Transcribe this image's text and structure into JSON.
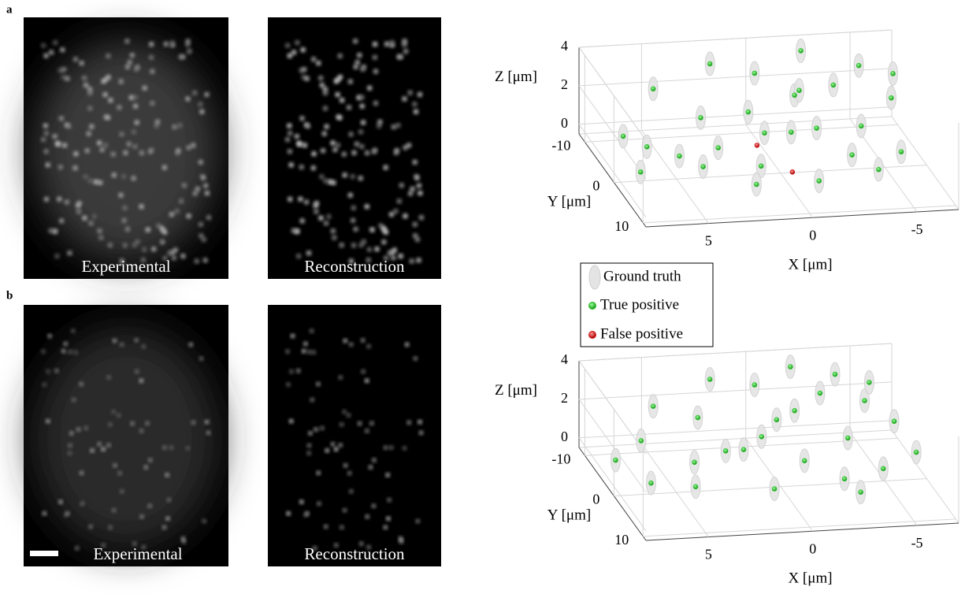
{
  "figure": {
    "panels": [
      {
        "label": "a",
        "images": [
          {
            "caption": "Experimental"
          },
          {
            "caption": "Reconstruction"
          }
        ]
      },
      {
        "label": "b",
        "images": [
          {
            "caption": "Experimental"
          },
          {
            "caption": "Reconstruction"
          }
        ]
      }
    ]
  },
  "chart_data": [
    {
      "type": "scatter3d",
      "xlabel": "X [μm]",
      "ylabel": "Y [μm]",
      "zlabel": "Z [μm]",
      "xlim": [
        8,
        -7
      ],
      "xticks": [
        5,
        0,
        -5
      ],
      "ylim": [
        -12,
        11
      ],
      "yticks": [
        -10,
        0,
        10
      ],
      "zlim": [
        -0.5,
        4
      ],
      "zticks": [
        0,
        2,
        4
      ],
      "series": [
        {
          "name": "Ground truth",
          "color": "#e4e4e4",
          "x": [
            7,
            6,
            5,
            4,
            3,
            2,
            1.5,
            1,
            0,
            -0.5,
            -1,
            -1.5,
            -2,
            -2.5,
            -3,
            -3.5,
            -4,
            -5,
            -5.5,
            -6,
            -6.5,
            7,
            3,
            0.5,
            -4,
            2,
            -2,
            5
          ],
          "y": [
            -4,
            -3,
            -8,
            2,
            -6,
            -10,
            4,
            -4,
            -9,
            0,
            6,
            -6,
            -2,
            -11,
            3,
            -7,
            -1,
            -9,
            2,
            -5,
            -8,
            2,
            0,
            -2,
            5,
            6,
            -8,
            1
          ],
          "z": [
            1,
            0.6,
            2.5,
            0.5,
            1.3,
            3.2,
            0.8,
            1.9,
            2.8,
            1.6,
            0.3,
            2.2,
            1.3,
            3.4,
            0.9,
            2.4,
            1.5,
            2.9,
            0.7,
            2,
            2.6,
            0.4,
            1,
            1.2,
            0.5,
            0.3,
            2,
            0.9
          ]
        },
        {
          "name": "True positive",
          "color": "#2cbf2c",
          "x": [
            7,
            6,
            5,
            4,
            3,
            2,
            1.5,
            1,
            0,
            -0.5,
            -1,
            -1.5,
            -2,
            -2.5,
            -3,
            -3.5,
            -4,
            -5,
            -5.5,
            -6,
            -6.5,
            7,
            3,
            0.5,
            -4,
            2,
            -2,
            5
          ],
          "y": [
            -4,
            -3,
            -8,
            2,
            -6,
            -10,
            4,
            -4,
            -9,
            0,
            6,
            -6,
            -2,
            -11,
            3,
            -7,
            -1,
            -9,
            2,
            -5,
            -8,
            2,
            0,
            -2,
            5,
            6,
            -8,
            1
          ],
          "z": [
            1,
            0.6,
            2.5,
            0.5,
            1.3,
            3.2,
            0.8,
            1.9,
            2.8,
            1.6,
            0.3,
            2.2,
            1.3,
            3.4,
            0.9,
            2.4,
            1.5,
            2.9,
            0.7,
            2,
            2.6,
            0.4,
            1,
            1.2,
            0.5,
            0.3,
            2,
            0.9
          ]
        },
        {
          "name": "False positive",
          "color": "#d42020",
          "x": [
            1,
            0
          ],
          "y": [
            -1,
            4
          ],
          "z": [
            0.8,
            0.4
          ]
        }
      ]
    },
    {
      "type": "scatter3d",
      "xlabel": "X [μm]",
      "ylabel": "Y [μm]",
      "zlabel": "Z [μm]",
      "xlim": [
        8,
        -7
      ],
      "xticks": [
        5,
        0,
        -5
      ],
      "ylim": [
        -12,
        11
      ],
      "yticks": [
        -10,
        0,
        10
      ],
      "zlim": [
        -0.5,
        4
      ],
      "zticks": [
        0,
        2,
        4
      ],
      "series": [
        {
          "color": "#e4e4e4",
          "x": [
            7.5,
            6,
            5,
            4.5,
            3,
            2,
            1,
            0.5,
            0,
            -1,
            -1.5,
            -2,
            -2.5,
            -3,
            -3.5,
            -4,
            -4.5,
            -5,
            -6,
            -6.5,
            6.5,
            2.5,
            -0.5,
            -3,
            1.5,
            -5.5,
            4
          ],
          "y": [
            -3,
            -5,
            -8,
            3,
            -7,
            -10,
            5,
            -3,
            -9,
            1,
            -6,
            -11,
            4,
            -8,
            -2,
            -10,
            3,
            -7,
            -4,
            0,
            2,
            -1,
            -5,
            6,
            -2,
            -9,
            -1
          ],
          "z": [
            0.7,
            1.2,
            2.3,
            0.4,
            1.8,
            3.1,
            0.5,
            1.5,
            2.9,
            1,
            2.1,
            3.3,
            0.6,
            2.5,
            1.4,
            3,
            0.8,
            2.2,
            1.7,
            0.9,
            0.5,
            1.3,
            1.9,
            0.3,
            1.1,
            2.7,
            0.8
          ]
        },
        {
          "color": "#2cbf2c",
          "x": [
            7.5,
            6,
            5,
            4.5,
            3,
            2,
            1,
            0.5,
            0,
            -1,
            -1.5,
            -2,
            -2.5,
            -3,
            -3.5,
            -4,
            -4.5,
            -5,
            -6,
            -6.5,
            6.5,
            2.5,
            -0.5,
            -3,
            1.5,
            -5.5,
            4
          ],
          "y": [
            -3,
            -5,
            -8,
            3,
            -7,
            -10,
            5,
            -3,
            -9,
            1,
            -6,
            -11,
            4,
            -8,
            -2,
            -10,
            3,
            -7,
            -4,
            0,
            2,
            -1,
            -5,
            6,
            -2,
            -9,
            -1
          ],
          "z": [
            0.7,
            1.2,
            2.3,
            0.4,
            1.8,
            3.1,
            0.5,
            1.5,
            2.9,
            1,
            2.1,
            3.3,
            0.6,
            2.5,
            1.4,
            3,
            0.8,
            2.2,
            1.7,
            0.9,
            0.5,
            1.3,
            1.9,
            0.3,
            1.1,
            2.7,
            0.8
          ]
        }
      ]
    }
  ]
}
